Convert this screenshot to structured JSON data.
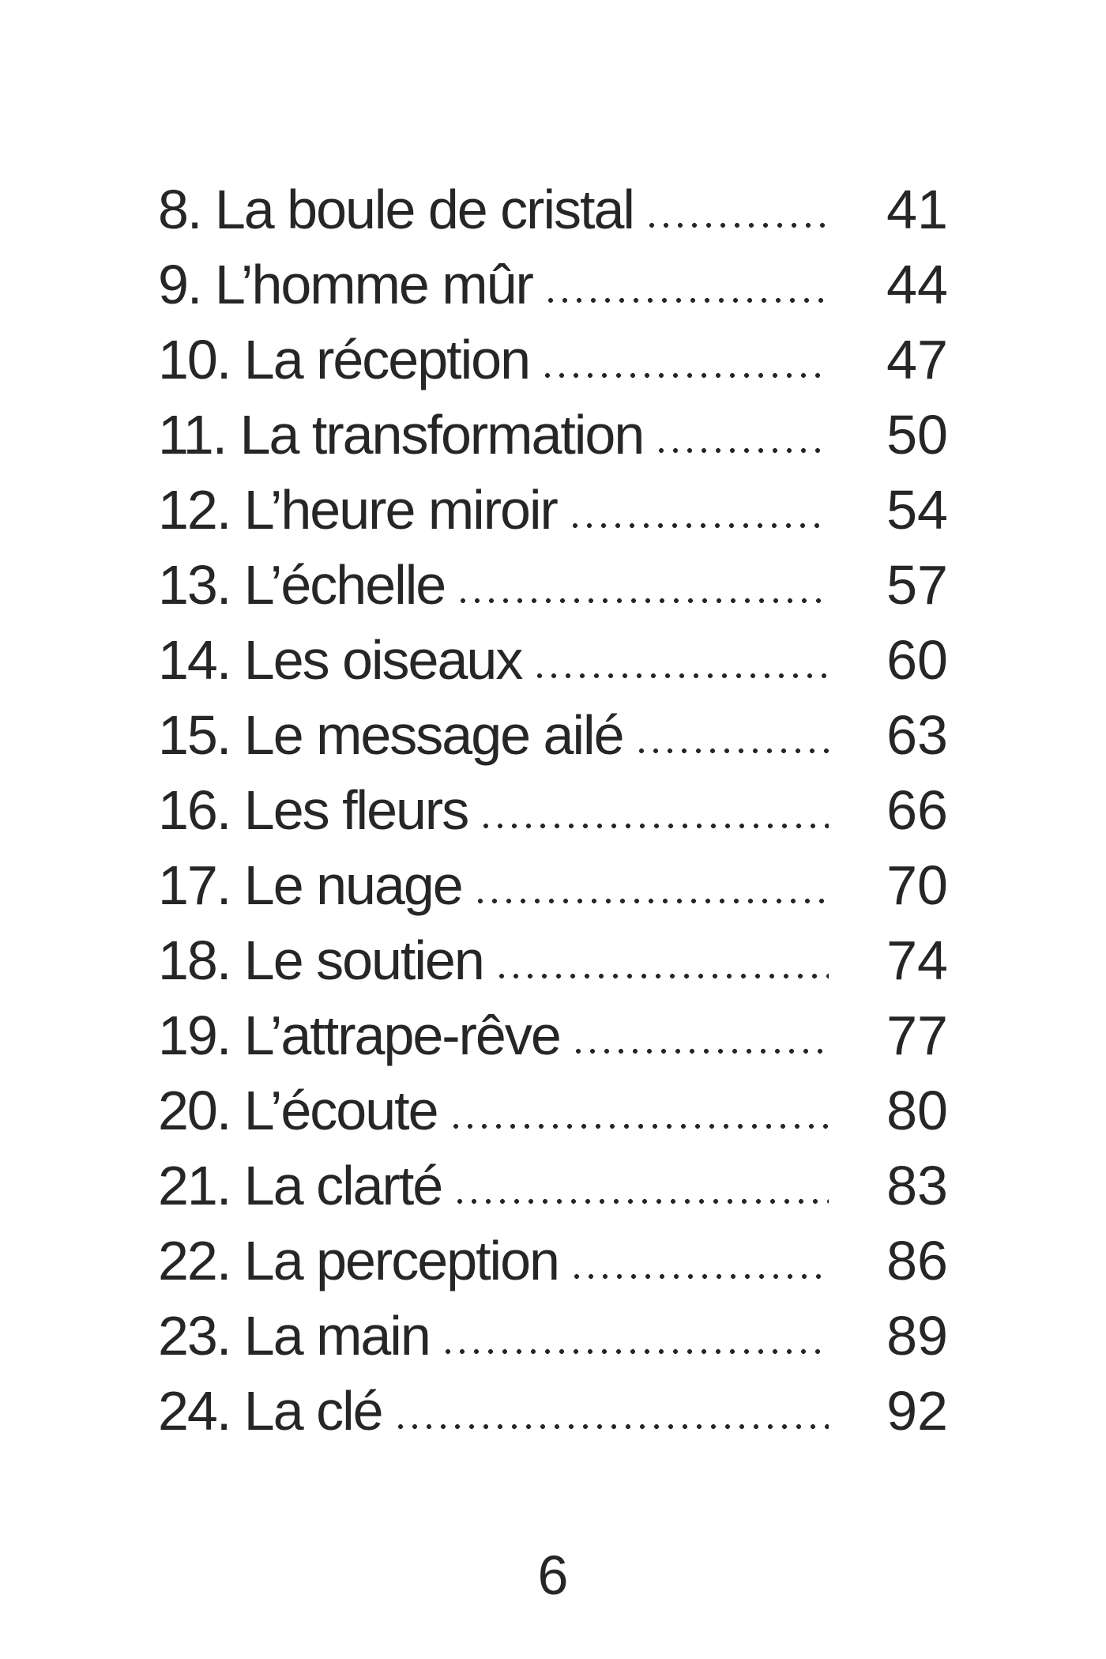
{
  "toc": {
    "entries": [
      {
        "label": "8. La boule de cristal",
        "page": "41"
      },
      {
        "label": "9. L’homme mûr",
        "page": "44"
      },
      {
        "label": "10. La réception",
        "page": "47"
      },
      {
        "label": "11. La transformation",
        "page": "50"
      },
      {
        "label": "12. L’heure miroir",
        "page": "54"
      },
      {
        "label": "13. L’échelle",
        "page": "57"
      },
      {
        "label": "14. Les oiseaux",
        "page": "60"
      },
      {
        "label": "15. Le message ailé",
        "page": "63"
      },
      {
        "label": "16. Les fleurs",
        "page": "66"
      },
      {
        "label": "17. Le nuage",
        "page": "70"
      },
      {
        "label": "18. Le soutien",
        "page": "74"
      },
      {
        "label": "19. L’attrape-rêve",
        "page": "77"
      },
      {
        "label": "20. L’écoute",
        "page": "80"
      },
      {
        "label": "21. La clarté",
        "page": "83"
      },
      {
        "label": "22. La perception",
        "page": "86"
      },
      {
        "label": "23. La main",
        "page": "89"
      },
      {
        "label": "24. La clé",
        "page": "92"
      }
    ],
    "current_page_number": "6"
  },
  "colors": {
    "text": "#262626",
    "background": "#ffffff"
  }
}
